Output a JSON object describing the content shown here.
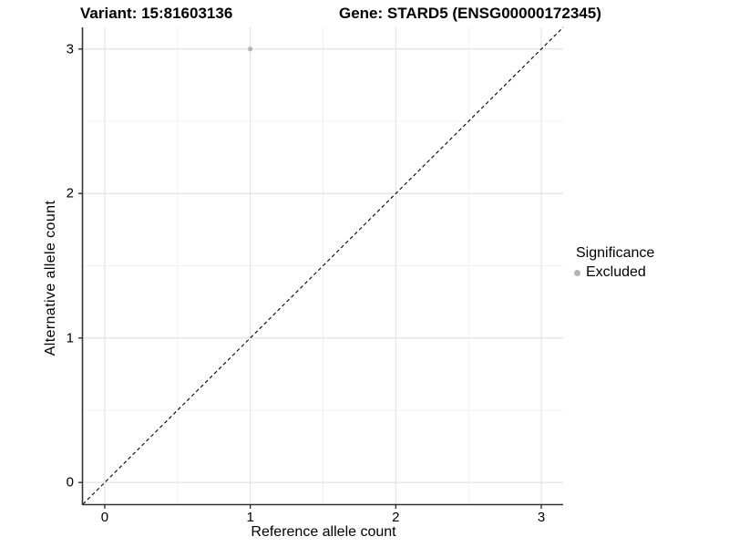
{
  "chart_data": {
    "type": "scatter",
    "title_left": "Variant: 15:81603136",
    "title_right": "Gene: STARD5 (ENSG00000172345)",
    "xlabel": "Reference allele count",
    "ylabel": "Alternative allele count",
    "xlim": [
      -0.15,
      3.15
    ],
    "ylim": [
      -0.15,
      3.15
    ],
    "x_ticks": [
      0,
      1,
      2,
      3
    ],
    "y_ticks": [
      0,
      1,
      2,
      3
    ],
    "x_minor_ticks": [
      0.5,
      1.5,
      2.5
    ],
    "y_minor_ticks": [
      0.5,
      1.5,
      2.5
    ],
    "grid": "on",
    "points": [
      {
        "x": 1,
        "y": 3,
        "series": "Excluded"
      }
    ],
    "reference_line": {
      "type": "identity",
      "slope": 1,
      "intercept": 0,
      "style": "dashed"
    },
    "legend": {
      "title": "Significance",
      "position": "right",
      "items": [
        {
          "label": "Excluded",
          "color": "#b4b4b4"
        }
      ]
    },
    "colors": {
      "point": "#b4b4b4",
      "grid_major": "#e3e3e3",
      "grid_minor": "#f2f2f2",
      "axis_line": "#333333",
      "dashed_line": "#000000",
      "text": "#000000",
      "background": "#ffffff"
    }
  }
}
